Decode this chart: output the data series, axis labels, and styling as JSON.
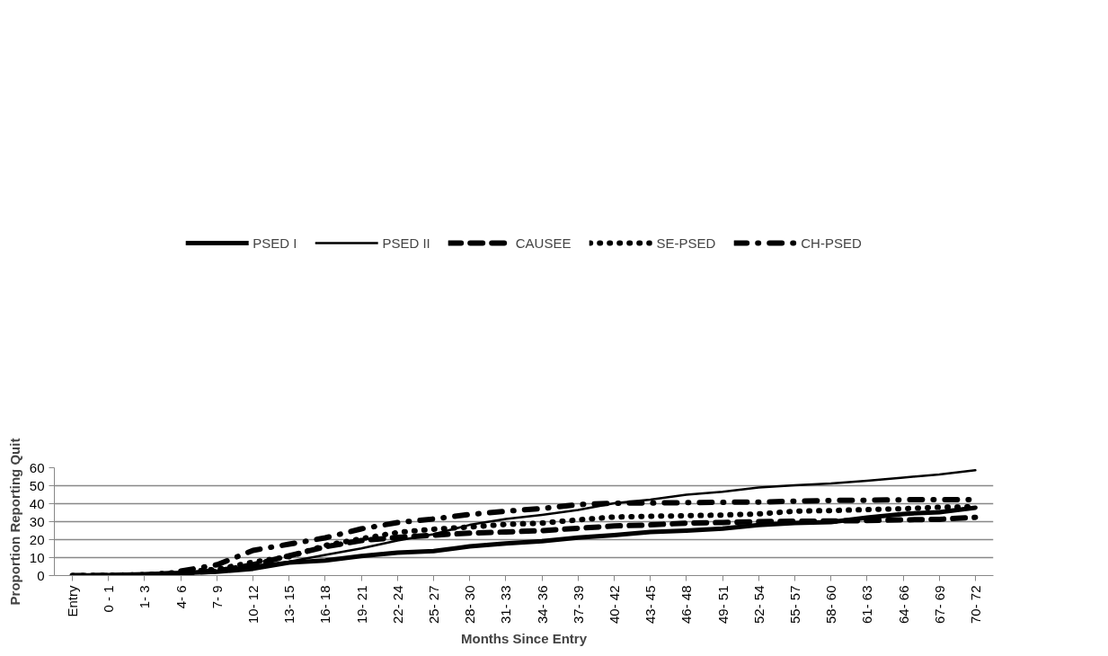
{
  "chart_data": {
    "type": "line",
    "xlabel": "Months Since Entry",
    "ylabel": "Proportion Reporting Quit",
    "categories": [
      "Entry",
      "0 - 1",
      "1- 3",
      "4- 6",
      "7- 9",
      "10- 12",
      "13- 15",
      "16- 18",
      "19- 21",
      "22- 24",
      "25- 27",
      "28- 30",
      "31- 33",
      "34- 36",
      "37- 39",
      "40- 42",
      "43- 45",
      "46- 48",
      "49- 51",
      "52- 54",
      "55- 57",
      "58- 60",
      "61- 63",
      "64- 66",
      "67- 69",
      "70- 72"
    ],
    "series": [
      {
        "name": "PSED I",
        "color": "#000000",
        "line_style": "solid",
        "values": [
          0,
          0.3,
          0.8,
          1.4,
          2.1,
          3.8,
          7.2,
          8.4,
          10.9,
          12.8,
          13.6,
          16.2,
          17.9,
          19.1,
          21.1,
          22.5,
          24.3,
          25.0,
          26.1,
          28.1,
          29.2,
          29.8,
          32.3,
          34.3,
          35.3,
          37.8
        ]
      },
      {
        "name": "PSED II",
        "color": "#000000",
        "line_style": "solid",
        "values": [
          0,
          0.4,
          1.0,
          2.0,
          2.8,
          5.5,
          7.8,
          11.5,
          15.1,
          19.5,
          23.0,
          28.2,
          31.5,
          33.8,
          36.5,
          40.3,
          42.3,
          45.0,
          46.6,
          49.0,
          50.3,
          51.2,
          52.8,
          54.5,
          56.3,
          58.6
        ]
      },
      {
        "name": "CAUSEE",
        "color": "#000000",
        "line_style": "dashed",
        "values": [
          0,
          0,
          0.2,
          1.5,
          2.5,
          6.0,
          11.0,
          16.0,
          19.5,
          21.2,
          22.5,
          23.6,
          24.3,
          25.0,
          26.3,
          27.6,
          28.2,
          29.2,
          29.5,
          30.0,
          30.2,
          30.4,
          30.6,
          31.0,
          31.3,
          32.4
        ]
      },
      {
        "name": "SE-PSED",
        "color": "#000000",
        "line_style": "dotted",
        "values": [
          0,
          0.2,
          0.5,
          1.8,
          3.5,
          7.5,
          10.5,
          16.8,
          20.5,
          24.0,
          25.8,
          27.0,
          28.5,
          29.2,
          31.0,
          32.6,
          33.0,
          33.3,
          33.7,
          34.3,
          35.8,
          36.2,
          36.7,
          37.2,
          38.0,
          38.3
        ]
      },
      {
        "name": "CH-PSED",
        "color": "#000000",
        "line_style": "dashdot",
        "values": [
          null,
          null,
          null,
          2.5,
          6.0,
          14.0,
          17.5,
          21.0,
          26.0,
          29.5,
          31.5,
          34.0,
          35.8,
          37.3,
          39.5,
          40.3,
          40.4,
          40.6,
          40.8,
          40.9,
          41.4,
          41.8,
          41.9,
          42.2,
          42.2,
          42.2
        ]
      }
    ],
    "ylim": [
      0,
      60
    ],
    "yticks": [
      0,
      10,
      20,
      30,
      40,
      50,
      60
    ],
    "grid": "y",
    "legend": "top"
  }
}
